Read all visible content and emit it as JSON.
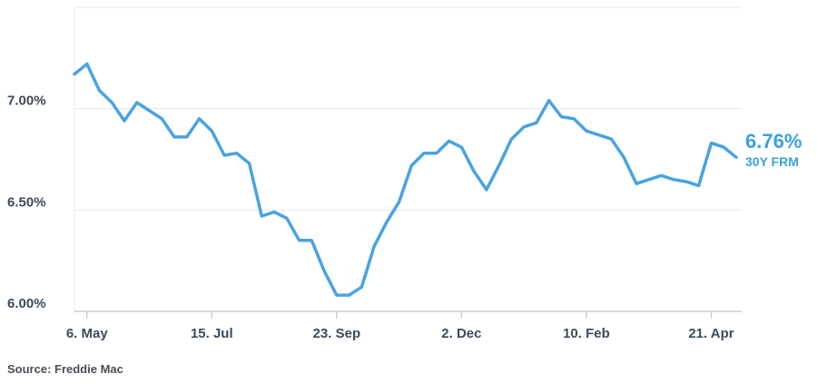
{
  "colors": {
    "line": "#4aa3df",
    "grid": "#e3e8ee",
    "axis": "#c9d0d8",
    "text": "#3d4a5c",
    "accent": "#3aa0dd"
  },
  "source": "Source: Freddie Mac",
  "chart_data": {
    "type": "line",
    "title": "",
    "xlabel": "",
    "ylabel": "",
    "ylim": [
      6.0,
      7.5
    ],
    "yticks": [
      {
        "value": 6.0,
        "label": "6.00%"
      },
      {
        "value": 6.5,
        "label": "6.50%"
      },
      {
        "value": 7.0,
        "label": "7.00%"
      }
    ],
    "xticks": [
      {
        "index": 1,
        "label": "6. May"
      },
      {
        "index": 11,
        "label": "15. Jul"
      },
      {
        "index": 21,
        "label": "23. Sep"
      },
      {
        "index": 31,
        "label": "2. Dec"
      },
      {
        "index": 41,
        "label": "10. Feb"
      },
      {
        "index": 51,
        "label": "21. Apr"
      }
    ],
    "series": [
      {
        "name": "30Y FRM",
        "values": [
          7.17,
          7.22,
          7.09,
          7.03,
          6.94,
          7.03,
          6.99,
          6.95,
          6.86,
          6.86,
          6.95,
          6.89,
          6.77,
          6.78,
          6.73,
          6.47,
          6.49,
          6.46,
          6.35,
          6.35,
          6.2,
          6.08,
          6.08,
          6.12,
          6.32,
          6.44,
          6.54,
          6.72,
          6.78,
          6.78,
          6.84,
          6.81,
          6.69,
          6.6,
          6.72,
          6.85,
          6.91,
          6.93,
          7.04,
          6.96,
          6.95,
          6.89,
          6.87,
          6.85,
          6.76,
          6.63,
          6.65,
          6.67,
          6.65,
          6.64,
          6.62,
          6.83,
          6.81,
          6.76
        ]
      }
    ],
    "end_label": {
      "value": "6.76%",
      "name": "30Y FRM"
    }
  }
}
